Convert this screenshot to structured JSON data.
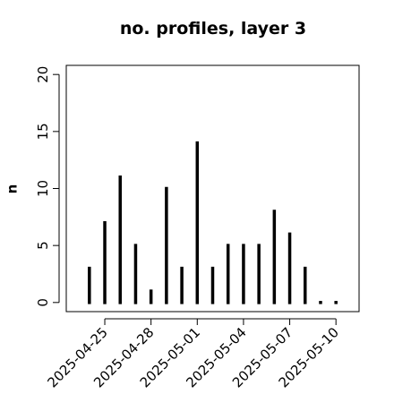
{
  "chart_data": {
    "type": "bar",
    "title": "no. profiles, layer 3",
    "ylabel": "n",
    "x": [
      "2025-04-24",
      "2025-04-25",
      "2025-04-26",
      "2025-04-27",
      "2025-04-28",
      "2025-04-29",
      "2025-04-30",
      "2025-05-01",
      "2025-05-02",
      "2025-05-03",
      "2025-05-04",
      "2025-05-05",
      "2025-05-06",
      "2025-05-07",
      "2025-05-08",
      "2025-05-09",
      "2025-05-10"
    ],
    "values": [
      3,
      7,
      11,
      5,
      1,
      10,
      3,
      14,
      3,
      5,
      5,
      5,
      8,
      6,
      3,
      0,
      0
    ],
    "color": "#000000",
    "xlim": [
      "2025-04-22T12:00",
      "2025-05-11T12:00"
    ],
    "xticks": [
      "2025-04-25",
      "2025-04-28",
      "2025-05-01",
      "2025-05-04",
      "2025-05-07",
      "2025-05-10"
    ],
    "xtick_colors": [
      "#000000",
      "#000000",
      "#228b22",
      "#000000",
      "#000000",
      "#000000"
    ],
    "ylim": [
      -0.8,
      20.8
    ],
    "yticks": [
      0,
      5,
      10,
      15,
      20
    ]
  }
}
